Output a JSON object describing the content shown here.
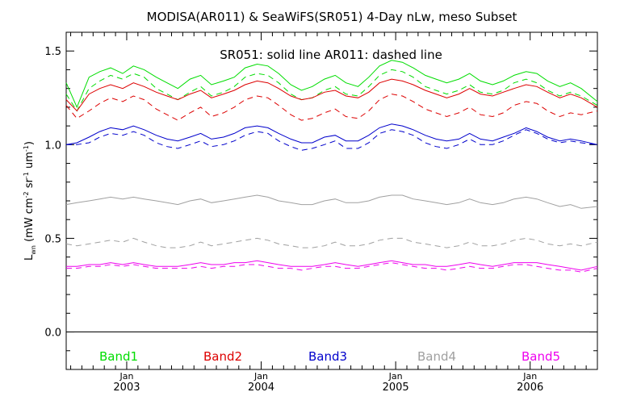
{
  "chart_data": {
    "type": "line",
    "title": "MODISA(AR011) & SeaWiFS(SR051) 4-Day nLw, meso Subset",
    "annotation": "SR051: solid line   AR011: dashed line",
    "ylabel": {
      "main": "L",
      "sub": "wn",
      "units_prefix": " (mW cm",
      "exp1": "-2",
      "mid": " sr",
      "exp2": "-1",
      "mid2": " um",
      "exp3": "-1",
      "close": ")"
    },
    "ylim": [
      -0.2,
      1.6
    ],
    "xlim": [
      2002.55,
      2006.5
    ],
    "y_ticks": [
      0.0,
      0.5,
      1.0,
      1.5
    ],
    "y_tick_labels": [
      "0.0",
      "0.5",
      "1.0",
      "1.5"
    ],
    "x_ticks": [
      {
        "value": 2003.0,
        "top": "Jan",
        "bottom": "2003"
      },
      {
        "value": 2004.0,
        "top": "Jan",
        "bottom": "2004"
      },
      {
        "value": 2005.0,
        "top": "Jan",
        "bottom": "2005"
      },
      {
        "value": 2006.0,
        "top": "Jan",
        "bottom": "2006"
      }
    ],
    "zero_line": true,
    "x": [
      2002.55,
      2002.63,
      2002.72,
      2002.8,
      2002.88,
      2002.97,
      2003.05,
      2003.13,
      2003.22,
      2003.3,
      2003.38,
      2003.47,
      2003.55,
      2003.63,
      2003.72,
      2003.8,
      2003.88,
      2003.97,
      2004.05,
      2004.13,
      2004.22,
      2004.3,
      2004.38,
      2004.47,
      2004.55,
      2004.63,
      2004.72,
      2004.8,
      2004.88,
      2004.97,
      2005.05,
      2005.13,
      2005.22,
      2005.3,
      2005.38,
      2005.47,
      2005.55,
      2005.63,
      2005.72,
      2005.8,
      2005.88,
      2005.97,
      2006.05,
      2006.13,
      2006.22,
      2006.3,
      2006.38,
      2006.5
    ],
    "series": [
      {
        "name": "Band1",
        "color": "#00dd00",
        "solid": [
          1.33,
          1.2,
          1.36,
          1.39,
          1.41,
          1.38,
          1.42,
          1.4,
          1.36,
          1.33,
          1.3,
          1.35,
          1.37,
          1.32,
          1.34,
          1.36,
          1.41,
          1.43,
          1.42,
          1.38,
          1.32,
          1.29,
          1.31,
          1.35,
          1.37,
          1.33,
          1.31,
          1.36,
          1.42,
          1.45,
          1.44,
          1.41,
          1.37,
          1.35,
          1.33,
          1.35,
          1.38,
          1.34,
          1.32,
          1.34,
          1.37,
          1.39,
          1.38,
          1.34,
          1.31,
          1.33,
          1.3,
          1.23
        ],
        "dashed": [
          1.27,
          1.18,
          1.3,
          1.34,
          1.37,
          1.35,
          1.38,
          1.36,
          1.3,
          1.27,
          1.24,
          1.28,
          1.31,
          1.26,
          1.28,
          1.31,
          1.36,
          1.38,
          1.37,
          1.33,
          1.27,
          1.24,
          1.25,
          1.29,
          1.31,
          1.27,
          1.26,
          1.31,
          1.37,
          1.4,
          1.39,
          1.36,
          1.31,
          1.29,
          1.27,
          1.29,
          1.32,
          1.28,
          1.27,
          1.29,
          1.33,
          1.35,
          1.33,
          1.29,
          1.26,
          1.28,
          1.26,
          1.21
        ]
      },
      {
        "name": "Band2",
        "color": "#dd0000",
        "solid": [
          1.24,
          1.18,
          1.27,
          1.3,
          1.32,
          1.3,
          1.33,
          1.31,
          1.28,
          1.26,
          1.24,
          1.27,
          1.29,
          1.25,
          1.27,
          1.29,
          1.32,
          1.34,
          1.33,
          1.3,
          1.26,
          1.24,
          1.25,
          1.28,
          1.29,
          1.26,
          1.25,
          1.28,
          1.33,
          1.35,
          1.34,
          1.32,
          1.29,
          1.27,
          1.25,
          1.27,
          1.3,
          1.27,
          1.26,
          1.28,
          1.3,
          1.32,
          1.31,
          1.28,
          1.25,
          1.27,
          1.25,
          1.2
        ],
        "dashed": [
          1.21,
          1.14,
          1.18,
          1.22,
          1.25,
          1.23,
          1.26,
          1.24,
          1.19,
          1.16,
          1.13,
          1.17,
          1.2,
          1.15,
          1.17,
          1.2,
          1.24,
          1.26,
          1.25,
          1.21,
          1.16,
          1.13,
          1.14,
          1.17,
          1.19,
          1.15,
          1.14,
          1.18,
          1.24,
          1.27,
          1.26,
          1.23,
          1.19,
          1.17,
          1.15,
          1.17,
          1.2,
          1.16,
          1.15,
          1.17,
          1.21,
          1.23,
          1.22,
          1.18,
          1.15,
          1.17,
          1.16,
          1.18
        ]
      },
      {
        "name": "Band3",
        "color": "#0000cc",
        "solid": [
          1.0,
          1.01,
          1.04,
          1.07,
          1.09,
          1.08,
          1.1,
          1.08,
          1.05,
          1.03,
          1.02,
          1.04,
          1.06,
          1.03,
          1.04,
          1.06,
          1.09,
          1.1,
          1.09,
          1.06,
          1.03,
          1.01,
          1.01,
          1.04,
          1.05,
          1.02,
          1.02,
          1.05,
          1.09,
          1.11,
          1.1,
          1.08,
          1.05,
          1.03,
          1.02,
          1.03,
          1.06,
          1.03,
          1.02,
          1.04,
          1.06,
          1.09,
          1.07,
          1.04,
          1.02,
          1.03,
          1.02,
          1.0
        ],
        "dashed": [
          1.0,
          1.0,
          1.01,
          1.04,
          1.06,
          1.05,
          1.07,
          1.05,
          1.01,
          0.99,
          0.98,
          1.0,
          1.02,
          0.99,
          1.0,
          1.02,
          1.05,
          1.07,
          1.06,
          1.02,
          0.99,
          0.97,
          0.98,
          1.0,
          1.02,
          0.98,
          0.98,
          1.01,
          1.06,
          1.08,
          1.07,
          1.05,
          1.01,
          0.99,
          0.98,
          1.0,
          1.03,
          1.0,
          1.0,
          1.02,
          1.05,
          1.08,
          1.06,
          1.03,
          1.01,
          1.02,
          1.01,
          1.0
        ]
      },
      {
        "name": "Band4",
        "color": "#a0a0a0",
        "solid": [
          0.68,
          0.69,
          0.7,
          0.71,
          0.72,
          0.71,
          0.72,
          0.71,
          0.7,
          0.69,
          0.68,
          0.7,
          0.71,
          0.69,
          0.7,
          0.71,
          0.72,
          0.73,
          0.72,
          0.7,
          0.69,
          0.68,
          0.68,
          0.7,
          0.71,
          0.69,
          0.69,
          0.7,
          0.72,
          0.73,
          0.73,
          0.71,
          0.7,
          0.69,
          0.68,
          0.69,
          0.71,
          0.69,
          0.68,
          0.69,
          0.71,
          0.72,
          0.71,
          0.69,
          0.67,
          0.68,
          0.66,
          0.67
        ],
        "dashed": [
          0.47,
          0.46,
          0.47,
          0.48,
          0.49,
          0.48,
          0.5,
          0.48,
          0.46,
          0.45,
          0.45,
          0.46,
          0.48,
          0.46,
          0.47,
          0.48,
          0.49,
          0.5,
          0.49,
          0.47,
          0.46,
          0.45,
          0.45,
          0.46,
          0.48,
          0.46,
          0.46,
          0.47,
          0.49,
          0.5,
          0.5,
          0.48,
          0.47,
          0.46,
          0.45,
          0.46,
          0.48,
          0.46,
          0.46,
          0.47,
          0.49,
          0.5,
          0.49,
          0.47,
          0.46,
          0.47,
          0.46,
          0.48
        ]
      },
      {
        "name": "Band5",
        "color": "#ee00ee",
        "solid": [
          0.35,
          0.35,
          0.36,
          0.36,
          0.37,
          0.36,
          0.37,
          0.36,
          0.35,
          0.35,
          0.35,
          0.36,
          0.37,
          0.36,
          0.36,
          0.37,
          0.37,
          0.38,
          0.37,
          0.36,
          0.35,
          0.35,
          0.35,
          0.36,
          0.37,
          0.36,
          0.35,
          0.36,
          0.37,
          0.38,
          0.37,
          0.36,
          0.36,
          0.35,
          0.35,
          0.36,
          0.37,
          0.36,
          0.35,
          0.36,
          0.37,
          0.37,
          0.37,
          0.36,
          0.35,
          0.34,
          0.33,
          0.35
        ],
        "dashed": [
          0.34,
          0.34,
          0.35,
          0.35,
          0.36,
          0.35,
          0.36,
          0.35,
          0.34,
          0.34,
          0.34,
          0.34,
          0.35,
          0.34,
          0.35,
          0.35,
          0.36,
          0.36,
          0.35,
          0.34,
          0.34,
          0.33,
          0.34,
          0.35,
          0.35,
          0.34,
          0.34,
          0.35,
          0.36,
          0.37,
          0.36,
          0.35,
          0.34,
          0.34,
          0.33,
          0.34,
          0.35,
          0.34,
          0.34,
          0.35,
          0.36,
          0.36,
          0.35,
          0.34,
          0.33,
          0.33,
          0.32,
          0.34
        ]
      }
    ],
    "legend": [
      {
        "name": "Band1",
        "color": "#00dd00"
      },
      {
        "name": "Band2",
        "color": "#dd0000"
      },
      {
        "name": "Band3",
        "color": "#0000cc"
      },
      {
        "name": "Band4",
        "color": "#a0a0a0"
      },
      {
        "name": "Band5",
        "color": "#ee00ee"
      }
    ]
  }
}
